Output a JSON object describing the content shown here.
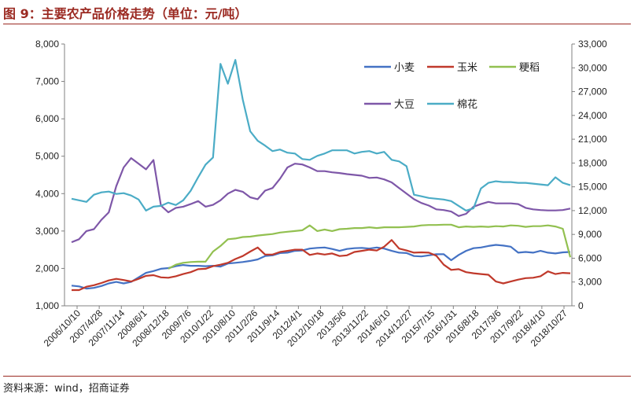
{
  "header": {
    "title": "图 9：主要农产品价格走势（单位：元/吨）"
  },
  "footer": {
    "source": "资料来源：wind，招商证券"
  },
  "colors": {
    "accent": "#9b2a22"
  },
  "chart_data": {
    "type": "line",
    "title": "",
    "ylim_left": [
      1000,
      8000
    ],
    "ylim_right": [
      0,
      33000
    ],
    "yticks_left": [
      "1,000",
      "2,000",
      "3,000",
      "4,000",
      "5,000",
      "6,000",
      "7,000",
      "8,000"
    ],
    "yticks_right": [
      "0",
      "3,000",
      "6,000",
      "9,000",
      "12,000",
      "15,000",
      "18,000",
      "21,000",
      "24,000",
      "27,000",
      "30,000",
      "33,000"
    ],
    "x_ticks": [
      "2006/10/10",
      "2007/4/28",
      "2007/11/14",
      "2008/6/1",
      "2008/12/18",
      "2009/7/6",
      "2010/1/22",
      "2010/8/10",
      "2011/2/26",
      "2011/9/14",
      "2012/4/1",
      "2012/10/18",
      "2013/5/6",
      "2013/11/22",
      "2014/6/10",
      "2014/12/27",
      "2015/7/15",
      "2016/1/31",
      "2016/8/18",
      "2017/3/6",
      "2017/9/22",
      "2018/4/10",
      "2018/10/27"
    ],
    "grid": false,
    "legend_position": "top-right",
    "series": [
      {
        "name": "小麦",
        "color": "#4472c4",
        "axis": "left",
        "values": [
          1540,
          1520,
          1460,
          1480,
          1530,
          1600,
          1640,
          1600,
          1640,
          1760,
          1880,
          1930,
          1990,
          2010,
          2060,
          2090,
          2070,
          2070,
          2060,
          2070,
          2050,
          2130,
          2150,
          2170,
          2200,
          2240,
          2330,
          2350,
          2410,
          2420,
          2470,
          2480,
          2530,
          2550,
          2560,
          2520,
          2470,
          2520,
          2540,
          2550,
          2530,
          2560,
          2530,
          2470,
          2420,
          2410,
          2330,
          2320,
          2350,
          2380,
          2380,
          2220,
          2360,
          2470,
          2540,
          2560,
          2600,
          2630,
          2610,
          2580,
          2420,
          2440,
          2420,
          2470,
          2420,
          2400,
          2430,
          2440
        ]
      },
      {
        "name": "玉米",
        "color": "#c0392b",
        "axis": "left",
        "values": [
          1420,
          1420,
          1510,
          1550,
          1610,
          1680,
          1720,
          1690,
          1650,
          1720,
          1800,
          1820,
          1760,
          1750,
          1790,
          1850,
          1900,
          1980,
          1990,
          2060,
          2100,
          2150,
          2250,
          2330,
          2450,
          2560,
          2370,
          2370,
          2440,
          2470,
          2500,
          2500,
          2360,
          2400,
          2370,
          2400,
          2330,
          2350,
          2440,
          2470,
          2500,
          2480,
          2580,
          2760,
          2530,
          2480,
          2420,
          2430,
          2420,
          2340,
          2100,
          1960,
          1980,
          1900,
          1870,
          1850,
          1830,
          1650,
          1600,
          1650,
          1700,
          1740,
          1750,
          1790,
          1920,
          1850,
          1880,
          1870
        ]
      },
      {
        "name": "粳稻",
        "color": "#92c050",
        "axis": "left",
        "values": [
          null,
          null,
          null,
          null,
          null,
          null,
          null,
          null,
          null,
          null,
          null,
          null,
          null,
          1990,
          2100,
          2150,
          2170,
          2180,
          2180,
          2450,
          2600,
          2780,
          2800,
          2840,
          2850,
          2880,
          2900,
          2920,
          2960,
          2980,
          3000,
          3020,
          3150,
          3000,
          3040,
          3000,
          3050,
          3060,
          3080,
          3080,
          3100,
          3080,
          3100,
          3100,
          3100,
          3110,
          3120,
          3150,
          3160,
          3160,
          3170,
          3170,
          3100,
          3120,
          3110,
          3120,
          3110,
          3130,
          3120,
          3150,
          3140,
          3110,
          3130,
          3130,
          3150,
          3120,
          3060,
          2300
        ]
      },
      {
        "name": "大豆",
        "color": "#7e57a8",
        "axis": "left",
        "values": [
          2700,
          2780,
          3000,
          3050,
          3300,
          3500,
          4200,
          4700,
          4950,
          4800,
          4650,
          4900,
          3680,
          3500,
          3620,
          3650,
          3720,
          3800,
          3650,
          3700,
          3820,
          4000,
          4100,
          4050,
          3900,
          3850,
          4080,
          4150,
          4400,
          4700,
          4800,
          4780,
          4700,
          4600,
          4600,
          4570,
          4550,
          4520,
          4500,
          4480,
          4420,
          4430,
          4380,
          4300,
          4150,
          4000,
          3850,
          3750,
          3680,
          3580,
          3560,
          3520,
          3400,
          3460,
          3650,
          3720,
          3780,
          3740,
          3740,
          3740,
          3720,
          3620,
          3580,
          3560,
          3550,
          3550,
          3560,
          3600
        ]
      },
      {
        "name": "棉花",
        "color": "#4bacc6",
        "axis": "right",
        "values": [
          13500,
          13300,
          13100,
          14000,
          14300,
          14400,
          14100,
          14200,
          13900,
          13400,
          12000,
          12500,
          12600,
          13000,
          12700,
          13300,
          14500,
          16200,
          17800,
          18700,
          30500,
          28000,
          31000,
          26000,
          22000,
          20800,
          20200,
          19500,
          19700,
          19300,
          19200,
          18500,
          18400,
          18900,
          19200,
          19600,
          19600,
          19600,
          19200,
          19400,
          19500,
          19200,
          19400,
          18400,
          18200,
          17600,
          14000,
          13800,
          13600,
          13500,
          13400,
          13200,
          12600,
          12000,
          12300,
          14800,
          15500,
          15700,
          15600,
          15600,
          15500,
          15500,
          15400,
          15300,
          15200,
          16200,
          15500,
          15200
        ]
      }
    ]
  }
}
